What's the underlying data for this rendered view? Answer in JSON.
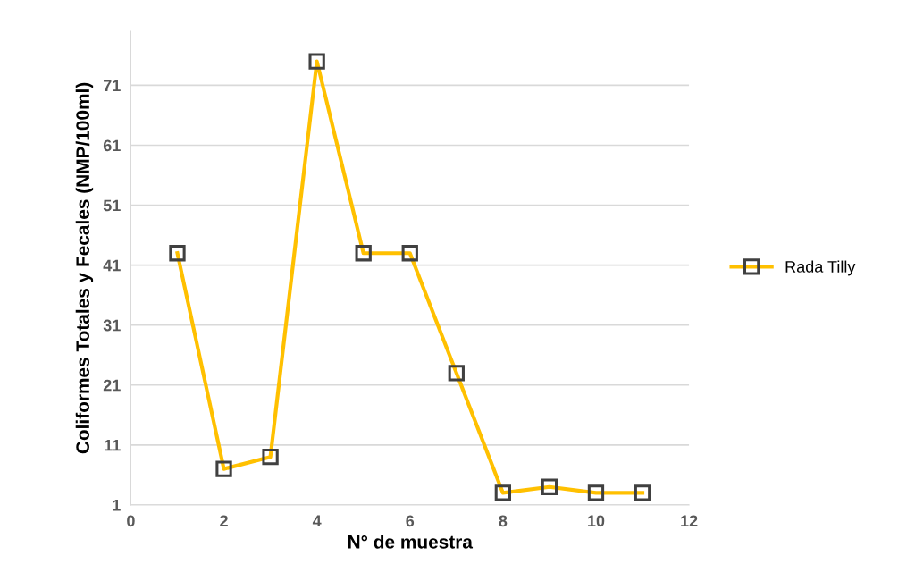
{
  "chart_data": {
    "type": "line",
    "xlabel": "N° de muestra",
    "ylabel": "Coliformes Totales y Fecales (NMP/100ml)",
    "x": [
      1,
      2,
      3,
      4,
      5,
      6,
      7,
      8,
      9,
      10,
      11
    ],
    "series": [
      {
        "name": "Rada Tilly",
        "color": "#ffc000",
        "values": [
          43,
          7,
          9,
          75,
          43,
          43,
          23,
          3,
          4,
          3,
          3
        ]
      }
    ],
    "xlim": [
      0,
      12
    ],
    "xticks": [
      0,
      2,
      4,
      6,
      8,
      10,
      12
    ],
    "ylim": [
      1,
      80
    ],
    "yticks": [
      1,
      11,
      21,
      31,
      41,
      51,
      61,
      71
    ],
    "grid": "y",
    "legend": "right",
    "marker": "square",
    "line_style": "solid"
  }
}
